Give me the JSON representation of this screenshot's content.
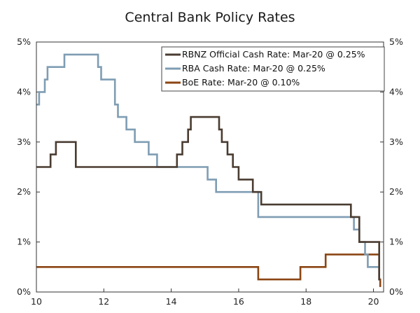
{
  "chart_data": {
    "type": "line",
    "title": "Central Bank Policy Rates",
    "xlabel": "",
    "ylabel": "",
    "xlim": [
      10,
      20.3
    ],
    "ylim": [
      0,
      5
    ],
    "x_ticks": [
      10,
      12,
      14,
      16,
      18,
      20
    ],
    "x_tick_labels": [
      "10",
      "12",
      "14",
      "16",
      "18",
      "20"
    ],
    "y_ticks": [
      0,
      1,
      2,
      3,
      4,
      5
    ],
    "y_tick_labels": [
      "0%",
      "1%",
      "2%",
      "3%",
      "4%",
      "5%"
    ],
    "legend_position": "top-right",
    "series": [
      {
        "name": "RBNZ Official Cash Rate: Mar-20 @ 0.25%",
        "color": "#4a3c31",
        "step": true,
        "points": [
          [
            10.0,
            2.5
          ],
          [
            10.42,
            2.75
          ],
          [
            10.58,
            3.0
          ],
          [
            11.17,
            2.5
          ],
          [
            14.17,
            2.75
          ],
          [
            14.33,
            3.0
          ],
          [
            14.5,
            3.25
          ],
          [
            14.58,
            3.5
          ],
          [
            15.42,
            3.25
          ],
          [
            15.5,
            3.0
          ],
          [
            15.67,
            2.75
          ],
          [
            15.83,
            2.5
          ],
          [
            16.0,
            2.25
          ],
          [
            16.42,
            2.0
          ],
          [
            16.67,
            1.75
          ],
          [
            19.33,
            1.5
          ],
          [
            19.58,
            1.0
          ],
          [
            20.17,
            0.25
          ],
          [
            20.2,
            0.25
          ]
        ]
      },
      {
        "name": "RBA Cash Rate: Mar-20 @ 0.25%",
        "color": "#7f9db3",
        "step": true,
        "points": [
          [
            10.0,
            3.75
          ],
          [
            10.08,
            4.0
          ],
          [
            10.25,
            4.25
          ],
          [
            10.33,
            4.5
          ],
          [
            10.83,
            4.75
          ],
          [
            11.83,
            4.5
          ],
          [
            11.92,
            4.25
          ],
          [
            12.33,
            3.75
          ],
          [
            12.42,
            3.5
          ],
          [
            12.67,
            3.25
          ],
          [
            12.92,
            3.0
          ],
          [
            13.33,
            2.75
          ],
          [
            13.58,
            2.5
          ],
          [
            15.08,
            2.25
          ],
          [
            15.33,
            2.0
          ],
          [
            16.58,
            1.75
          ],
          [
            16.58,
            1.5
          ],
          [
            19.42,
            1.25
          ],
          [
            19.58,
            1.0
          ],
          [
            19.75,
            0.75
          ],
          [
            19.83,
            0.5
          ],
          [
            20.17,
            0.25
          ],
          [
            20.2,
            0.25
          ]
        ]
      },
      {
        "name": "BoE Rate: Mar-20 @ 0.10%",
        "color": "#8b4513",
        "step": true,
        "points": [
          [
            10.0,
            0.5
          ],
          [
            16.58,
            0.25
          ],
          [
            17.83,
            0.5
          ],
          [
            18.58,
            0.75
          ],
          [
            20.17,
            0.25
          ],
          [
            20.2,
            0.1
          ]
        ]
      }
    ]
  }
}
